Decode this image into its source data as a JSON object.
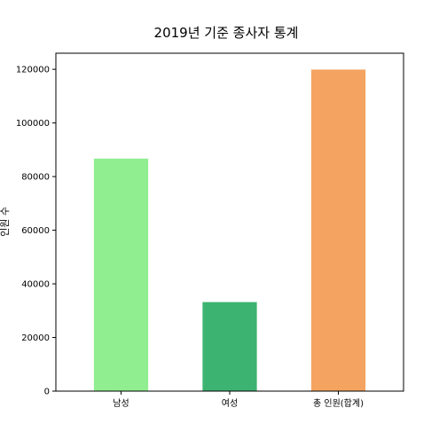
{
  "chart_data": {
    "type": "bar",
    "title": "2019년 기준 종사자 통계",
    "xlabel": "",
    "ylabel": "인원 수",
    "categories": [
      "남성",
      "여성",
      "총 인원(합계)"
    ],
    "values": [
      86700,
      33200,
      119900
    ],
    "colors": [
      "#90ee90",
      "#3cb371",
      "#f4a460"
    ],
    "ylim": [
      0,
      126000
    ],
    "yticks": [
      0,
      20000,
      40000,
      60000,
      80000,
      100000,
      120000
    ],
    "grid": false,
    "legend": "none"
  }
}
